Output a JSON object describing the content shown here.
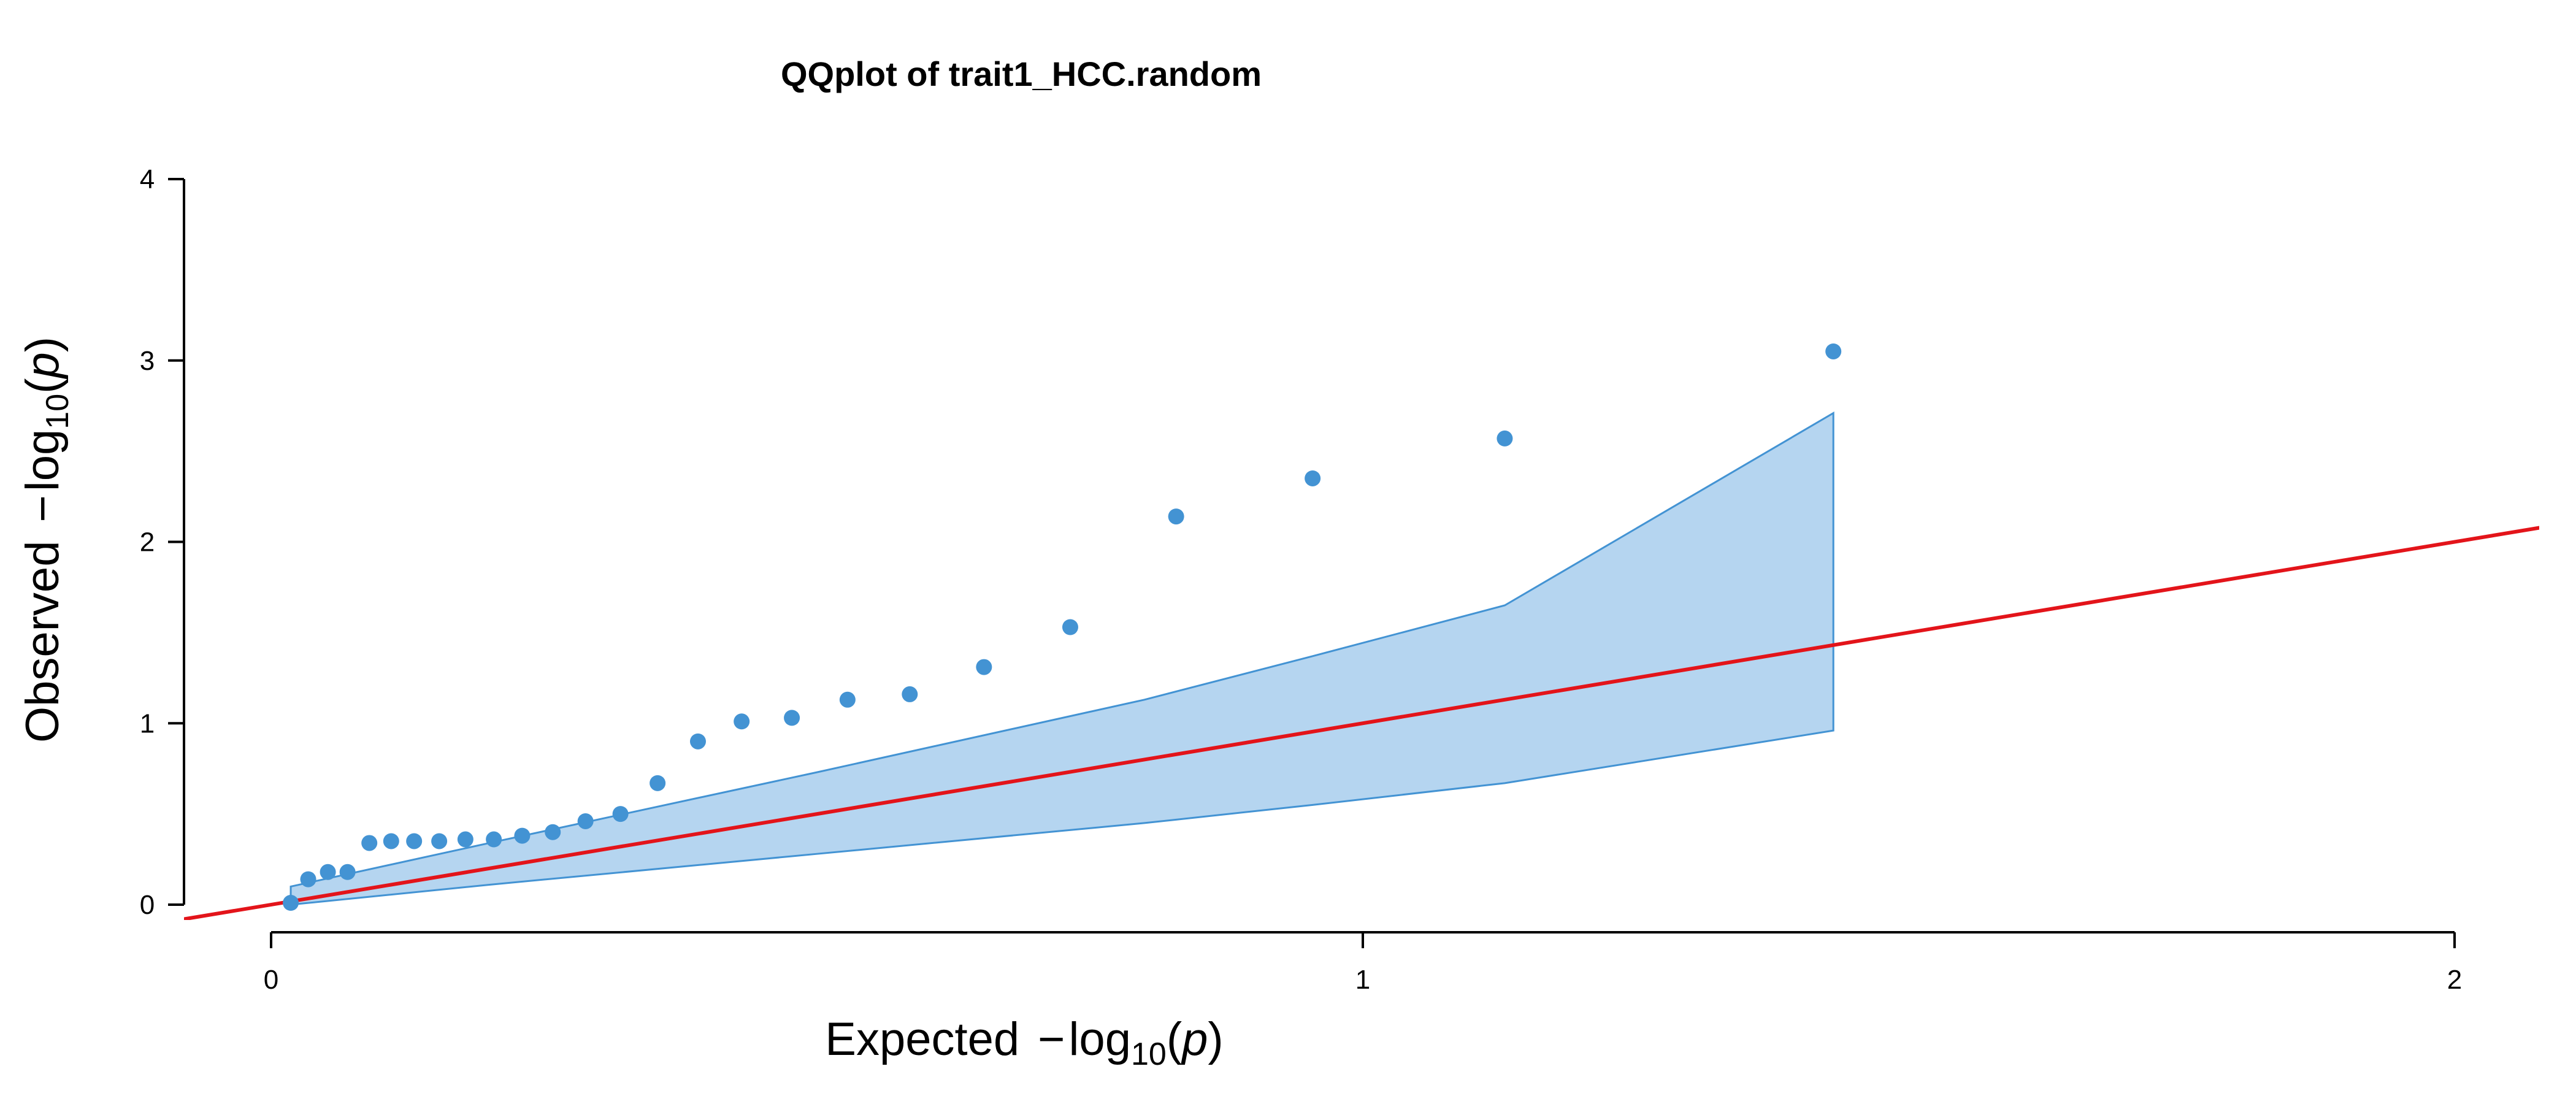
{
  "chart_data": {
    "type": "scatter",
    "title": "QQplot of trait1_HCC.random",
    "xlabel": {
      "prefix": "Expected",
      "minus": "−",
      "log": "log",
      "subscript": "10",
      "open": "(",
      "var": "p",
      "close": ")"
    },
    "ylabel": {
      "prefix": "Observed",
      "minus": "−",
      "log": "log",
      "subscript": "10",
      "open": "(",
      "var": "p",
      "close": ")"
    },
    "xlim": [
      0,
      2
    ],
    "ylim": [
      0,
      4
    ],
    "xticks": [
      0,
      1,
      2
    ],
    "yticks": [
      0,
      1,
      2,
      3,
      4
    ],
    "grid": false,
    "colors": {
      "points": "#4393d3",
      "band_fill": "#b5d5f0",
      "band_stroke": "#4393d3",
      "reference_line": "#e3141a"
    },
    "points": [
      {
        "x": 0.018,
        "y": 0.01
      },
      {
        "x": 0.034,
        "y": 0.14
      },
      {
        "x": 0.052,
        "y": 0.18
      },
      {
        "x": 0.07,
        "y": 0.18
      },
      {
        "x": 0.09,
        "y": 0.34
      },
      {
        "x": 0.11,
        "y": 0.35
      },
      {
        "x": 0.131,
        "y": 0.35
      },
      {
        "x": 0.154,
        "y": 0.35
      },
      {
        "x": 0.178,
        "y": 0.36
      },
      {
        "x": 0.204,
        "y": 0.36
      },
      {
        "x": 0.23,
        "y": 0.38
      },
      {
        "x": 0.258,
        "y": 0.4
      },
      {
        "x": 0.288,
        "y": 0.46
      },
      {
        "x": 0.32,
        "y": 0.5
      },
      {
        "x": 0.354,
        "y": 0.67
      },
      {
        "x": 0.391,
        "y": 0.9
      },
      {
        "x": 0.431,
        "y": 1.01
      },
      {
        "x": 0.477,
        "y": 1.03
      },
      {
        "x": 0.528,
        "y": 1.13
      },
      {
        "x": 0.585,
        "y": 1.16
      },
      {
        "x": 0.653,
        "y": 1.31
      },
      {
        "x": 0.732,
        "y": 1.53
      },
      {
        "x": 0.829,
        "y": 2.14
      },
      {
        "x": 0.954,
        "y": 2.35
      },
      {
        "x": 1.13,
        "y": 2.57
      },
      {
        "x": 1.431,
        "y": 3.05
      }
    ],
    "confidence_band": {
      "x": [
        0.018,
        0.2,
        0.5,
        0.8,
        0.954,
        1.13,
        1.431
      ],
      "upper": [
        0.1,
        0.34,
        0.73,
        1.13,
        1.37,
        1.65,
        2.71
      ],
      "lower": [
        0.0,
        0.11,
        0.28,
        0.45,
        0.55,
        0.67,
        0.96
      ]
    },
    "reference_line": {
      "slope": 1,
      "intercept": 0
    }
  }
}
